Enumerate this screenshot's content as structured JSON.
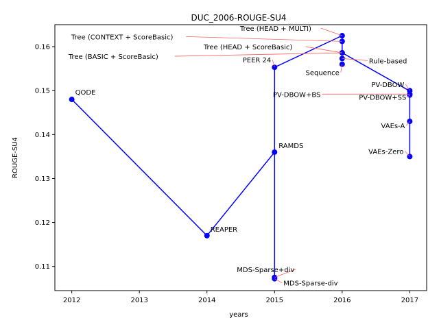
{
  "chart_data": {
    "type": "line",
    "title": "DUC_2006-ROUGE-SU4",
    "xlabel": "years",
    "ylabel": "ROUGE-SU4",
    "xlim": [
      2011.75,
      2017.25
    ],
    "ylim": [
      0.1045,
      0.165
    ],
    "xticks": [
      2012,
      2013,
      2014,
      2015,
      2016,
      2017
    ],
    "yticks": [
      0.11,
      0.12,
      0.13,
      0.14,
      0.15,
      0.16
    ],
    "ytick_labels": [
      "0.11",
      "0.12",
      "0.13",
      "0.14",
      "0.15",
      "0.16"
    ],
    "grid": false,
    "line_color": "#0000ff",
    "marker_color": "#0000ff",
    "annotation_arrow_color": "#ff6060",
    "frontier_path": [
      [
        2012,
        0.148
      ],
      [
        2014,
        0.117
      ],
      [
        2015,
        0.136
      ],
      [
        2015,
        0.1553
      ],
      [
        2015,
        0.1073
      ],
      [
        2015,
        0.1553
      ],
      [
        2016,
        0.1625
      ],
      [
        2016,
        0.1586
      ],
      [
        2017,
        0.1499
      ],
      [
        2017,
        0.135
      ]
    ],
    "points": [
      {
        "label": "QODE",
        "x": 2012,
        "y": 0.148
      },
      {
        "label": "REAPER",
        "x": 2014,
        "y": 0.117
      },
      {
        "label": "RAMDS",
        "x": 2015,
        "y": 0.136
      },
      {
        "label": "PEER 24",
        "x": 2015,
        "y": 0.1553
      },
      {
        "label": "MDS-Sparse+div",
        "x": 2015,
        "y": 0.1075
      },
      {
        "label": "MDS-Sparse-div",
        "x": 2015,
        "y": 0.1072
      },
      {
        "label": "Tree (HEAD + MULTI)",
        "x": 2016,
        "y": 0.1625
      },
      {
        "label": "Tree (CONTEXT + ScoreBasic)",
        "x": 2016,
        "y": 0.1612
      },
      {
        "label": "Tree (HEAD + ScoreBasic)",
        "x": 2016,
        "y": 0.1586
      },
      {
        "label": "Tree (BASIC + ScoreBasic)",
        "x": 2016,
        "y": 0.1586
      },
      {
        "label": "Rule-based",
        "x": 2016,
        "y": 0.1573
      },
      {
        "label": "Sequence",
        "x": 2016,
        "y": 0.156
      },
      {
        "label": "PV-DBOW",
        "x": 2017,
        "y": 0.15
      },
      {
        "label": "PV-DBOW+BS",
        "x": 2017,
        "y": 0.1492
      },
      {
        "label": "PV-DBOW+SS",
        "x": 2017,
        "y": 0.149
      },
      {
        "label": "VAEs-A",
        "x": 2017,
        "y": 0.143
      },
      {
        "label": "VAEs-Zero",
        "x": 2017,
        "y": 0.135
      }
    ]
  }
}
